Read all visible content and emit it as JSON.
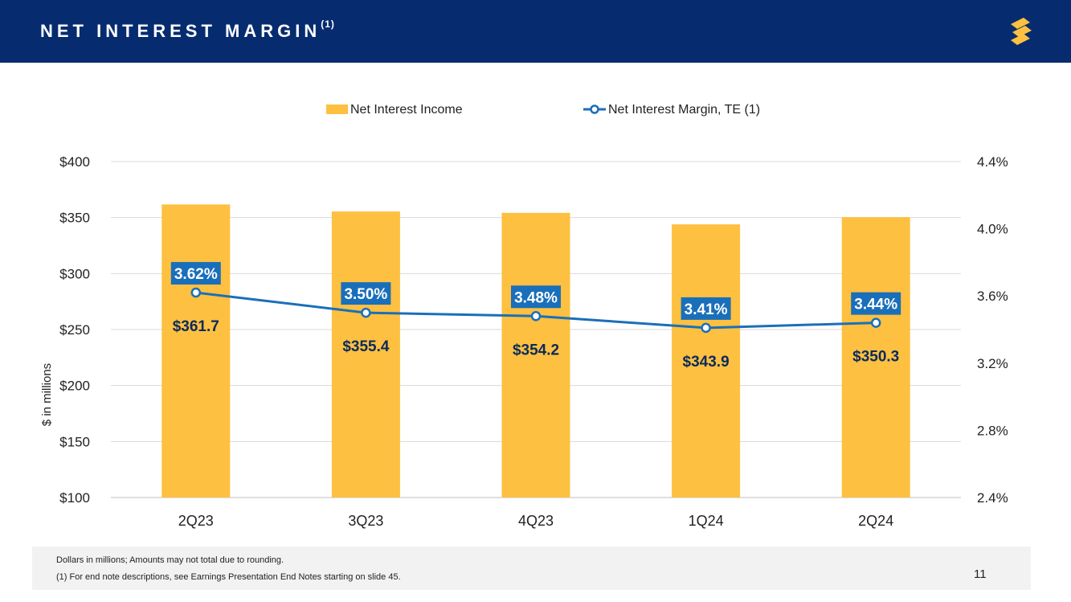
{
  "header": {
    "title": "NET INTEREST MARGIN",
    "title_sup": "(1)",
    "logo_icon": "s-logo-icon"
  },
  "colors": {
    "header_bg": "#062c6f",
    "bar": "#fdc040",
    "line": "#1a6fba",
    "label_box": "#1a6fba",
    "value_text": "#0b2a5c",
    "logo": "#fdc040"
  },
  "chart_data": {
    "type": "bar",
    "categories": [
      "2Q23",
      "3Q23",
      "4Q23",
      "1Q24",
      "2Q24"
    ],
    "series": [
      {
        "name": "Net Interest Income",
        "kind": "bar",
        "axis": "left",
        "values": [
          361.7,
          355.4,
          354.2,
          343.9,
          350.3
        ],
        "labels": [
          "$361.7",
          "$355.4",
          "$354.2",
          "$343.9",
          "$350.3"
        ]
      },
      {
        "name": "Net Interest Margin, TE (1)",
        "kind": "line",
        "axis": "right",
        "values": [
          3.62,
          3.5,
          3.48,
          3.41,
          3.44
        ],
        "labels": [
          "3.62%",
          "3.50%",
          "3.48%",
          "3.41%",
          "3.44%"
        ]
      }
    ],
    "ylabel": "$ in millions",
    "ylim": [
      100,
      400
    ],
    "yticks": [
      100,
      150,
      200,
      250,
      300,
      350,
      400
    ],
    "ytick_labels": [
      "$100",
      "$150",
      "$200",
      "$250",
      "$300",
      "$350",
      "$400"
    ],
    "y2lim": [
      2.4,
      4.4
    ],
    "y2ticks": [
      2.4,
      2.8,
      3.2,
      3.6,
      4.0,
      4.4
    ],
    "y2tick_labels": [
      "2.4%",
      "2.8%",
      "3.2%",
      "3.6%",
      "4.0%",
      "4.4%"
    ],
    "legend": "top-center",
    "grid": true
  },
  "footer": {
    "note1": "Dollars in millions; Amounts may not total due to rounding.",
    "note2": "(1)  For end note descriptions, see Earnings Presentation End Notes starting on slide 45.",
    "page_number": "11"
  }
}
